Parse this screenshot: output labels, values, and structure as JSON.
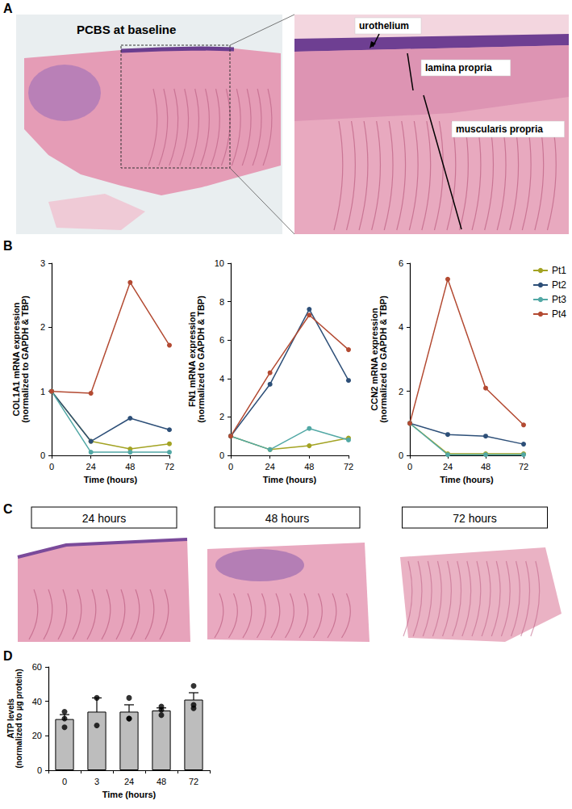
{
  "figure": {
    "panel_a": {
      "letter": "A",
      "title": "PCBS at baseline",
      "annotations": [
        "urothelium",
        "lamina propria",
        "muscularis propria"
      ]
    },
    "panel_b": {
      "letter": "B"
    },
    "panel_c": {
      "letter": "C",
      "titles": [
        "24 hours",
        "48 hours",
        "72 hours"
      ]
    },
    "panel_d": {
      "letter": "D"
    }
  },
  "chart_data": [
    {
      "type": "line",
      "ylabel": "COL1A1 mRNA expression (normalized to GAPDH & TBP)",
      "xlabel": "Time (hours)",
      "x": [
        0,
        24,
        48,
        72
      ],
      "xlim": [
        0,
        72
      ],
      "xticks": [
        0,
        24,
        48,
        72
      ],
      "ylim": [
        0,
        3
      ],
      "yticks": [
        0,
        1,
        2,
        3
      ],
      "grid": false,
      "marker": "circle",
      "series": [
        {
          "name": "Pt1",
          "color": "#a3a323",
          "values": [
            1,
            0.22,
            0.1,
            0.18
          ]
        },
        {
          "name": "Pt2",
          "color": "#2d4f78",
          "values": [
            1,
            0.22,
            0.58,
            0.4
          ]
        },
        {
          "name": "Pt3",
          "color": "#52a8a5",
          "values": [
            1,
            0.05,
            0.05,
            0.05
          ]
        },
        {
          "name": "Pt4",
          "color": "#b34a32",
          "values": [
            1,
            0.97,
            2.7,
            1.72
          ]
        }
      ]
    },
    {
      "type": "line",
      "ylabel": "FN1 mRNA expression (normalized to GAPDH & TBP)",
      "xlabel": "Time (hours)",
      "x": [
        0,
        24,
        48,
        72
      ],
      "xlim": [
        0,
        72
      ],
      "xticks": [
        0,
        24,
        48,
        72
      ],
      "ylim": [
        0,
        10
      ],
      "yticks": [
        0,
        2,
        4,
        6,
        8,
        10
      ],
      "grid": false,
      "marker": "circle",
      "series": [
        {
          "name": "Pt1",
          "color": "#a3a323",
          "values": [
            1,
            0.3,
            0.5,
            0.9
          ]
        },
        {
          "name": "Pt2",
          "color": "#2d4f78",
          "values": [
            1,
            3.7,
            7.6,
            3.9
          ]
        },
        {
          "name": "Pt3",
          "color": "#52a8a5",
          "values": [
            1,
            0.3,
            1.4,
            0.8
          ]
        },
        {
          "name": "Pt4",
          "color": "#b34a32",
          "values": [
            1,
            4.3,
            7.3,
            5.5
          ]
        }
      ]
    },
    {
      "type": "line",
      "ylabel": "CCN2 mRNA expression (normalized to GAPDH & TBP)",
      "xlabel": "Time (hours)",
      "x": [
        0,
        24,
        48,
        72
      ],
      "xlim": [
        0,
        72
      ],
      "xticks": [
        0,
        24,
        48,
        72
      ],
      "ylim": [
        0,
        6
      ],
      "yticks": [
        0,
        2,
        4,
        6
      ],
      "grid": false,
      "marker": "circle",
      "legend": "top-right",
      "series": [
        {
          "name": "Pt1",
          "color": "#a3a323",
          "values": [
            1,
            0.05,
            0.05,
            0.05
          ]
        },
        {
          "name": "Pt2",
          "color": "#2d4f78",
          "values": [
            1,
            0.65,
            0.6,
            0.35
          ]
        },
        {
          "name": "Pt3",
          "color": "#52a8a5",
          "values": [
            1,
            0.02,
            0.02,
            0.02
          ]
        },
        {
          "name": "Pt4",
          "color": "#b34a32",
          "values": [
            1,
            5.5,
            2.1,
            0.95
          ]
        }
      ]
    },
    {
      "type": "bar",
      "ylabel": "ATP levels (normalized to µg protein)",
      "xlabel": "Time (hours)",
      "categories": [
        "0",
        "3",
        "24",
        "48",
        "72"
      ],
      "values": [
        29.7,
        34,
        34,
        34.7,
        41
      ],
      "errors": [
        2.6,
        8,
        4,
        1.5,
        4
      ],
      "points": [
        [
          34,
          25,
          30
        ],
        [
          42,
          26
        ],
        [
          42,
          30,
          30
        ],
        [
          37,
          32,
          35
        ],
        [
          49,
          36,
          38
        ]
      ],
      "color": "#bdbdbd",
      "ylim": [
        0,
        60
      ],
      "yticks": [
        0,
        20,
        40,
        60
      ],
      "grid": false
    }
  ]
}
